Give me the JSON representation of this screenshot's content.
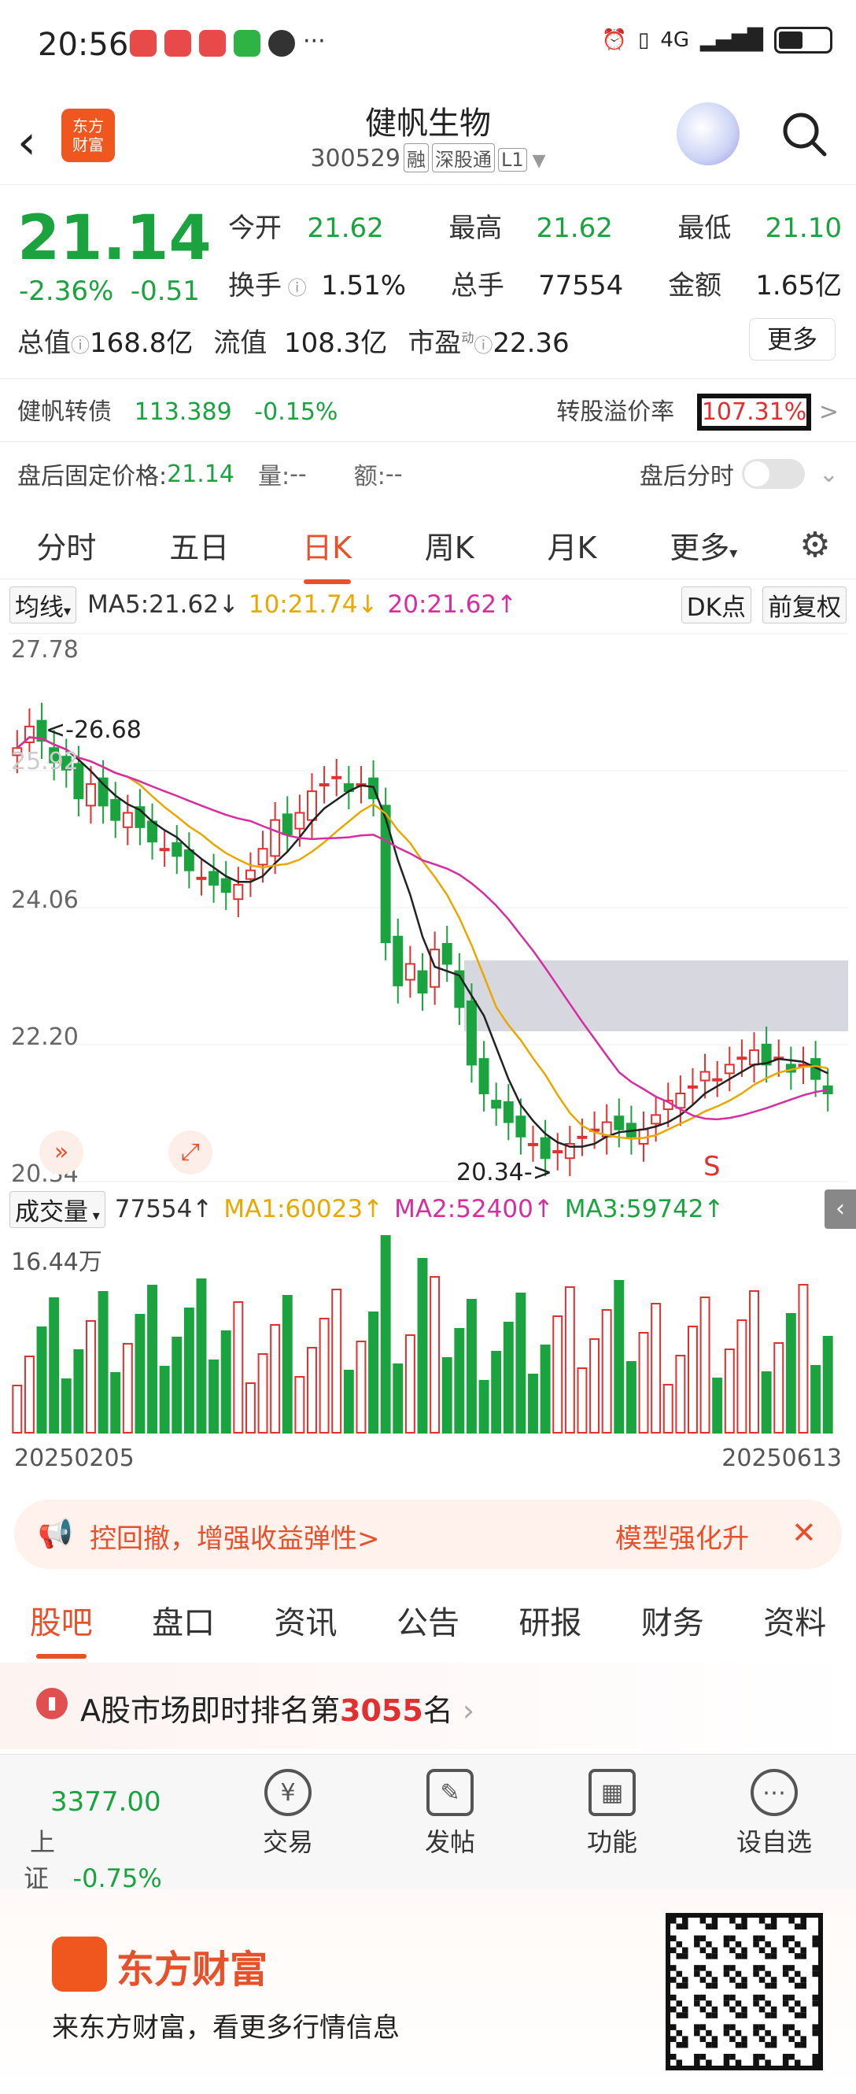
{
  "status_bar": {
    "time": "20:56",
    "more": "···",
    "network": "4G"
  },
  "header": {
    "back": "‹",
    "logo_text": "东方\n财富",
    "title": "健帆生物",
    "code": "300529",
    "tags": [
      "融",
      "深股通",
      "L1"
    ]
  },
  "quote": {
    "price": "21.14",
    "change_pct": "-2.36%",
    "change": "-0.51",
    "rows": [
      [
        {
          "l": "今开",
          "v": "21.62"
        },
        {
          "l": "最高",
          "v": "21.62"
        },
        {
          "l": "最低",
          "v": "21.10"
        }
      ],
      [
        {
          "l": "换手",
          "v": "1.51%"
        },
        {
          "l": "总手",
          "v": "77554"
        },
        {
          "l": "金额",
          "v": "1.65亿"
        }
      ]
    ],
    "total_mv_label": "总值",
    "total_mv": "168.8亿",
    "float_mv_label": "流值",
    "float_mv": "108.3亿",
    "pe_label": "市盈",
    "pe_sup": "动",
    "pe": "22.36",
    "more": "更多"
  },
  "bond": {
    "name": "健帆转债",
    "price": "113.389",
    "chg": "-0.15%",
    "premium_label": "转股溢价率",
    "premium": "107.31%",
    "arrow": ">"
  },
  "after_hours": {
    "label": "盘后固定价格:",
    "price": "21.14",
    "vol_label": "量:",
    "vol": "--",
    "amt_label": "额:",
    "amt": "--",
    "ts_label": "盘后分时"
  },
  "kline_tabs": [
    "分时",
    "五日",
    "日K",
    "周K",
    "月K",
    "更多"
  ],
  "ma_bar": {
    "type": "均线",
    "ma5": "MA5:21.62↓",
    "ma10": "10:21.74↓",
    "ma20": "20:21.62↑",
    "dk": "DK点",
    "adj": "前复权"
  },
  "chart": {
    "y_top": "27.78",
    "y_mid1": "24.06",
    "y_mid2": "22.20",
    "y_low": "20.34",
    "high_mark": "<-26.68",
    "high_label_partial": "25.92",
    "low_mark": "20.34->",
    "s_label": "S"
  },
  "vol_bar": {
    "label": "成交量",
    "vol": "77554↑",
    "ma1": "MA1:60023↑",
    "ma2": "MA2:52400↑",
    "ma3": "MA3:59742↑",
    "max": "16.44万"
  },
  "dates": {
    "start": "20250205",
    "end": "20250613"
  },
  "banner": {
    "left": "控回撤，增强收益弹性>",
    "right": "模型强化升",
    "close": "✕"
  },
  "bottom_tabs": [
    "股吧",
    "盘口",
    "资讯",
    "公告",
    "研报",
    "财务",
    "资料"
  ],
  "rank": {
    "prefix": "A股市场即时排名第",
    "num": "3055",
    "suffix": "名",
    "arrow": "›"
  },
  "nav": {
    "index_val": "3377.00",
    "index_name": "上证",
    "index_chg": "-0.75%",
    "items": [
      "交易",
      "发帖",
      "功能",
      "设自选"
    ]
  },
  "footer": {
    "brand": "东方财富",
    "slogan": "来东方财富，看更多行情信息"
  },
  "colors": {
    "up": "#e03030",
    "down": "#1aa33f",
    "accent": "#e8502a"
  },
  "chart_data": {
    "type": "candlestick",
    "dates_range": [
      "20250205",
      "20250613"
    ],
    "ylim": [
      20.34,
      27.78
    ],
    "series": [
      {
        "name": "MA5",
        "values": [
          21.62
        ]
      },
      {
        "name": "MA10",
        "values": [
          21.74
        ]
      },
      {
        "name": "MA20",
        "values": [
          21.62
        ]
      }
    ],
    "annotations": [
      "<-26.68",
      "20.34->"
    ]
  }
}
